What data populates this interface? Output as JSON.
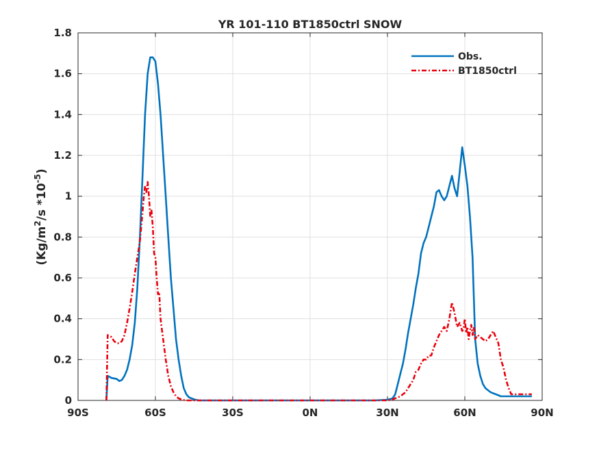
{
  "chart_data": {
    "type": "line",
    "title": "YR 101-110 BT1850ctrl SNOW",
    "xlabel": "",
    "ylabel": "(Kg/m²/s *10⁻⁵)",
    "ylabel_parts": [
      "(Kg/m",
      "2",
      "/s *10",
      "-5",
      ")"
    ],
    "xlim": [
      -90,
      90
    ],
    "ylim": [
      0,
      1.8
    ],
    "xticks": [
      -90,
      -60,
      -30,
      0,
      30,
      60,
      90
    ],
    "xtick_labels": [
      "90S",
      "60S",
      "30S",
      "0N",
      "30N",
      "60N",
      "90N"
    ],
    "yticks": [
      0,
      0.2,
      0.4,
      0.6,
      0.8,
      1,
      1.2,
      1.4,
      1.6,
      1.8
    ],
    "ytick_labels": [
      "0",
      "0.2",
      "0.4",
      "0.6",
      "0.8",
      "1",
      "1.2",
      "1.4",
      "1.6",
      "1.8"
    ],
    "grid": true,
    "legend_position": "top-right",
    "series": [
      {
        "name": "Obs.",
        "color": "#0072BD",
        "style": "solid",
        "x": [
          -79,
          -78.5,
          -77,
          -75,
          -74,
          -73,
          -72,
          -71,
          -70,
          -69,
          -68,
          -67,
          -66,
          -65,
          -64,
          -63,
          -62,
          -61,
          -60,
          -59,
          -58,
          -57,
          -56,
          -55,
          -54,
          -53,
          -52,
          -51,
          -50,
          -49,
          -48,
          -47,
          -46,
          -45,
          -44,
          -43,
          -42,
          -40,
          -35,
          -30,
          -20,
          -10,
          0,
          10,
          20,
          25,
          30,
          32,
          33,
          34,
          35,
          36,
          37,
          38,
          39,
          40,
          41,
          42,
          43,
          44,
          45,
          46,
          47,
          48,
          49,
          50,
          51,
          52,
          53,
          54,
          55,
          56,
          57,
          58,
          59,
          60,
          61,
          62,
          63,
          63.5,
          64,
          65,
          66,
          67,
          68,
          69,
          70,
          71,
          72,
          73,
          74,
          75,
          76,
          77,
          78,
          79,
          80,
          81,
          82,
          83,
          84,
          85,
          86
        ],
        "y": [
          0.0,
          0.12,
          0.11,
          0.105,
          0.095,
          0.1,
          0.12,
          0.15,
          0.2,
          0.27,
          0.38,
          0.55,
          0.8,
          1.1,
          1.4,
          1.6,
          1.68,
          1.68,
          1.66,
          1.55,
          1.4,
          1.2,
          1.0,
          0.8,
          0.6,
          0.45,
          0.3,
          0.2,
          0.12,
          0.06,
          0.03,
          0.015,
          0.01,
          0.005,
          0.002,
          0.0,
          0.0,
          0.0,
          0.0,
          0.0,
          0.0,
          0.0,
          0.0,
          0.0,
          0.0,
          0.0,
          0.003,
          0.01,
          0.03,
          0.08,
          0.13,
          0.18,
          0.25,
          0.33,
          0.4,
          0.47,
          0.55,
          0.62,
          0.72,
          0.77,
          0.8,
          0.85,
          0.9,
          0.95,
          1.02,
          1.03,
          1.0,
          0.98,
          1.0,
          1.05,
          1.1,
          1.04,
          1.0,
          1.12,
          1.24,
          1.15,
          1.05,
          0.9,
          0.7,
          0.5,
          0.3,
          0.18,
          0.12,
          0.08,
          0.06,
          0.05,
          0.04,
          0.035,
          0.03,
          0.025,
          0.02,
          0.02,
          0.02,
          0.02,
          0.02,
          0.02,
          0.02,
          0.02,
          0.02,
          0.02,
          0.02,
          0.02,
          0.02
        ]
      },
      {
        "name": "BT1850ctrl",
        "color": "#E8000B",
        "style": "dash-dot",
        "x": [
          -79,
          -78.5,
          -77,
          -76,
          -75,
          -74,
          -73,
          -72,
          -71,
          -70,
          -69,
          -68,
          -67,
          -66,
          -65,
          -64.5,
          -64,
          -63.5,
          -63,
          -62.5,
          -62,
          -61.5,
          -61,
          -60.5,
          -60,
          -59.5,
          -59,
          -58.5,
          -58,
          -57.5,
          -57,
          -56,
          -55,
          -54,
          -53,
          -52,
          -51,
          -50,
          -49,
          -48,
          -47,
          -46,
          -45,
          -40,
          -30,
          -20,
          -10,
          0,
          10,
          20,
          25,
          30,
          32,
          33,
          34,
          35,
          36,
          37,
          38,
          39,
          40,
          41,
          42,
          43,
          44,
          45,
          46,
          47,
          48,
          49,
          50,
          51,
          52,
          53,
          54,
          55,
          56,
          57,
          58,
          59,
          59.5,
          60,
          60.5,
          61,
          61.5,
          62,
          62.5,
          63,
          63.5,
          64,
          65,
          66,
          67,
          68,
          69,
          70,
          71,
          72,
          73,
          74,
          75,
          76,
          77,
          78,
          79,
          80,
          81,
          82,
          83,
          84,
          85,
          86
        ],
        "y": [
          0.0,
          0.32,
          0.31,
          0.29,
          0.28,
          0.28,
          0.29,
          0.32,
          0.38,
          0.45,
          0.53,
          0.62,
          0.7,
          0.78,
          0.92,
          1.0,
          1.05,
          1.02,
          1.07,
          1.0,
          0.9,
          0.93,
          0.85,
          0.72,
          0.7,
          0.6,
          0.52,
          0.53,
          0.4,
          0.35,
          0.3,
          0.2,
          0.12,
          0.07,
          0.04,
          0.02,
          0.01,
          0.005,
          0.002,
          0.0,
          0.0,
          0.0,
          0.0,
          0.0,
          0.0,
          0.0,
          0.0,
          0.0,
          0.0,
          0.0,
          0.0,
          0.0,
          0.005,
          0.01,
          0.015,
          0.02,
          0.03,
          0.04,
          0.06,
          0.08,
          0.1,
          0.14,
          0.15,
          0.18,
          0.2,
          0.2,
          0.22,
          0.22,
          0.26,
          0.29,
          0.32,
          0.34,
          0.36,
          0.34,
          0.4,
          0.48,
          0.43,
          0.36,
          0.38,
          0.34,
          0.35,
          0.4,
          0.33,
          0.36,
          0.3,
          0.34,
          0.37,
          0.32,
          0.36,
          0.3,
          0.32,
          0.31,
          0.3,
          0.29,
          0.3,
          0.32,
          0.34,
          0.31,
          0.28,
          0.2,
          0.16,
          0.1,
          0.06,
          0.03,
          0.03,
          0.03,
          0.03,
          0.03,
          0.03,
          0.03,
          0.03,
          0.03
        ]
      }
    ]
  }
}
